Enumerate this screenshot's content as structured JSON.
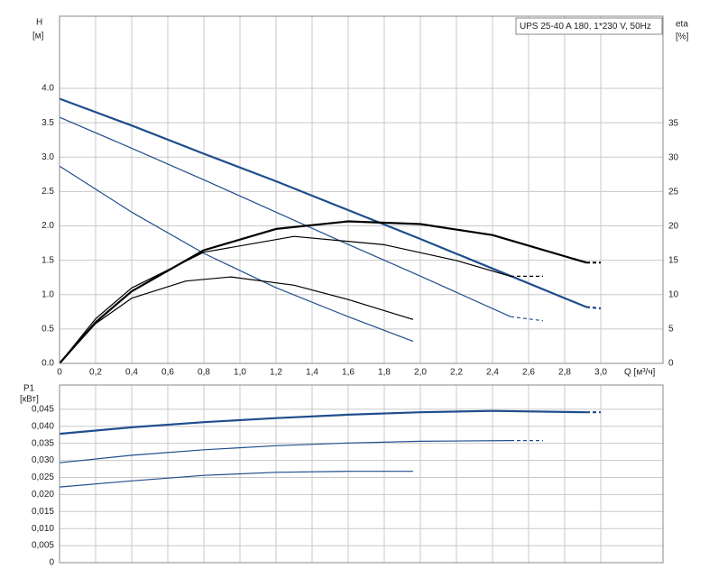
{
  "chart_data": [
    {
      "type": "line",
      "title": "UPS 25-40 A 180, 1*230 V, 50Hz",
      "y_label": "H",
      "y_unit": "[м]",
      "y2_label": "eta",
      "y2_unit": "[%]",
      "x_label": "Q [м³/ч]",
      "grid": true,
      "xlim": [
        0,
        3.345
      ],
      "xticks": [
        0,
        {
          "value": 0.2,
          "label": "0,2"
        },
        {
          "value": 0.4,
          "label": "0,4"
        },
        {
          "value": 0.6,
          "label": "0,6"
        },
        {
          "value": 0.8,
          "label": "0,8"
        },
        {
          "value": 1.0,
          "label": "1,0"
        },
        {
          "value": 1.2,
          "label": "1,2"
        },
        {
          "value": 1.4,
          "label": "1,4"
        },
        {
          "value": 1.6,
          "label": "1,6"
        },
        {
          "value": 1.8,
          "label": "1,8"
        },
        {
          "value": 2.0,
          "label": "2,0"
        },
        {
          "value": 2.2,
          "label": "2,2"
        },
        {
          "value": 2.4,
          "label": "2,4"
        },
        {
          "value": 2.6,
          "label": "2,6"
        },
        {
          "value": 2.8,
          "label": "2,8"
        },
        {
          "value": 3.0,
          "label": "3,0"
        }
      ],
      "ylim": [
        0,
        5.05
      ],
      "yticks": [
        {
          "value": 0,
          "label": "0.0"
        },
        0.5,
        {
          "value": 1,
          "label": "1.0"
        },
        1.5,
        {
          "value": 2,
          "label": "2.0"
        },
        2.5,
        {
          "value": 3,
          "label": "3.0"
        },
        3.5,
        {
          "value": 4,
          "label": "4.0"
        }
      ],
      "y2lim": [
        0,
        50.6
      ],
      "y2ticks": [
        0,
        5,
        10,
        15,
        20,
        25,
        30,
        35
      ],
      "series": [
        {
          "color": "#1f4e8c",
          "width": 2.2,
          "x": [
            0,
            0.4,
            0.8,
            1.2,
            1.6,
            2.0,
            2.4,
            2.92
          ],
          "values": [
            3.85,
            3.46,
            3.05,
            2.65,
            2.23,
            1.81,
            1.38,
            0.82
          ]
        },
        {
          "color": "#1f4e8c",
          "width": 2.2,
          "dash": true,
          "x": [
            2.92,
            3.0
          ],
          "values": [
            0.82,
            0.8
          ]
        },
        {
          "color": "#1f4e8c",
          "width": 1.2,
          "x": [
            0,
            0.4,
            0.8,
            1.2,
            1.6,
            2.0,
            2.5
          ],
          "values": [
            3.58,
            3.13,
            2.67,
            2.2,
            1.73,
            1.27,
            0.68
          ]
        },
        {
          "color": "#1f4e8c",
          "width": 1.2,
          "dash": true,
          "x": [
            2.5,
            2.68
          ],
          "values": [
            0.68,
            0.62
          ]
        },
        {
          "color": "#1f4e8c",
          "width": 1.2,
          "x": [
            0,
            0.4,
            0.8,
            1.2,
            1.6,
            1.96
          ],
          "values": [
            2.87,
            2.2,
            1.6,
            1.1,
            0.68,
            0.32
          ]
        },
        {
          "color": "#000000",
          "width": 2.2,
          "axis": "y2",
          "x": [
            0,
            0.2,
            0.4,
            0.8,
            1.2,
            1.6,
            2.0,
            2.4,
            2.92
          ],
          "values": [
            0,
            6,
            10.5,
            16.5,
            19.6,
            20.7,
            20.3,
            18.7,
            14.7
          ]
        },
        {
          "color": "#000000",
          "width": 2.2,
          "axis": "y2",
          "dash": true,
          "x": [
            2.92,
            3.0
          ],
          "values": [
            14.7,
            14.7
          ]
        },
        {
          "color": "#000000",
          "width": 1.2,
          "axis": "y2",
          "x": [
            0,
            0.2,
            0.4,
            0.8,
            1.3,
            1.8,
            2.2,
            2.5
          ],
          "values": [
            0,
            6.5,
            11,
            16.2,
            18.5,
            17.3,
            15,
            12.7
          ]
        },
        {
          "color": "#000000",
          "width": 1.2,
          "axis": "y2",
          "dash": true,
          "x": [
            2.5,
            2.68
          ],
          "values": [
            12.7,
            12.7
          ]
        },
        {
          "color": "#000000",
          "width": 1.2,
          "axis": "y2",
          "x": [
            0,
            0.2,
            0.4,
            0.7,
            0.95,
            1.3,
            1.6,
            1.96
          ],
          "values": [
            0,
            5.8,
            9.5,
            12,
            12.6,
            11.4,
            9.3,
            6.4
          ]
        }
      ]
    },
    {
      "type": "line",
      "y_label": "P1",
      "y_unit": "[кВт]",
      "grid": true,
      "xlim": [
        0,
        3.345
      ],
      "ylim": [
        0,
        0.0521
      ],
      "yticks": [
        0,
        {
          "value": 0.005,
          "label": "0,005"
        },
        {
          "value": 0.01,
          "label": "0,010"
        },
        {
          "value": 0.015,
          "label": "0,015"
        },
        {
          "value": 0.02,
          "label": "0,020"
        },
        {
          "value": 0.025,
          "label": "0,025"
        },
        {
          "value": 0.03,
          "label": "0,030"
        },
        {
          "value": 0.035,
          "label": "0,035"
        },
        {
          "value": 0.04,
          "label": "0,040"
        },
        {
          "value": 0.045,
          "label": "0,045"
        }
      ],
      "series": [
        {
          "color": "#1f4e8c",
          "width": 2.2,
          "x": [
            0,
            0.4,
            0.8,
            1.2,
            1.6,
            2.0,
            2.4,
            2.92
          ],
          "values": [
            0.0378,
            0.0397,
            0.0412,
            0.0424,
            0.0434,
            0.0441,
            0.0445,
            0.0441
          ]
        },
        {
          "color": "#1f4e8c",
          "width": 2.2,
          "dash": true,
          "x": [
            2.92,
            3.0
          ],
          "values": [
            0.0441,
            0.0441
          ]
        },
        {
          "color": "#1f4e8c",
          "width": 1.2,
          "x": [
            0,
            0.4,
            0.8,
            1.2,
            1.6,
            2.0,
            2.5
          ],
          "values": [
            0.0293,
            0.0315,
            0.0331,
            0.0343,
            0.0351,
            0.0356,
            0.0358
          ]
        },
        {
          "color": "#1f4e8c",
          "width": 1.2,
          "dash": true,
          "x": [
            2.5,
            2.68
          ],
          "values": [
            0.0358,
            0.0358
          ]
        },
        {
          "color": "#1f4e8c",
          "width": 1.2,
          "x": [
            0,
            0.4,
            0.8,
            1.2,
            1.6,
            1.96
          ],
          "values": [
            0.0222,
            0.024,
            0.0256,
            0.0265,
            0.0268,
            0.0268
          ]
        }
      ]
    }
  ]
}
